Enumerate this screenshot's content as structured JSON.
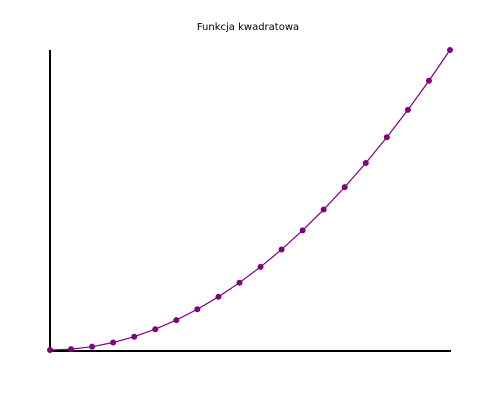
{
  "chart_data": {
    "type": "line",
    "title": "Funkcja kwadratowa",
    "xlabel": "",
    "ylabel": "",
    "x": [
      0,
      1,
      2,
      3,
      4,
      5,
      6,
      7,
      8,
      9,
      10,
      11,
      12,
      13,
      14,
      15,
      16,
      17,
      18,
      19
    ],
    "series": [
      {
        "values": [
          0,
          1,
          4,
          9,
          16,
          25,
          36,
          49,
          64,
          81,
          100,
          121,
          144,
          169,
          196,
          225,
          256,
          289,
          324,
          361
        ],
        "color": "#800080"
      }
    ],
    "xlim": [
      0,
      19
    ],
    "ylim": [
      0,
      361
    ],
    "grid": false,
    "legend": "none",
    "marker": "circle"
  }
}
